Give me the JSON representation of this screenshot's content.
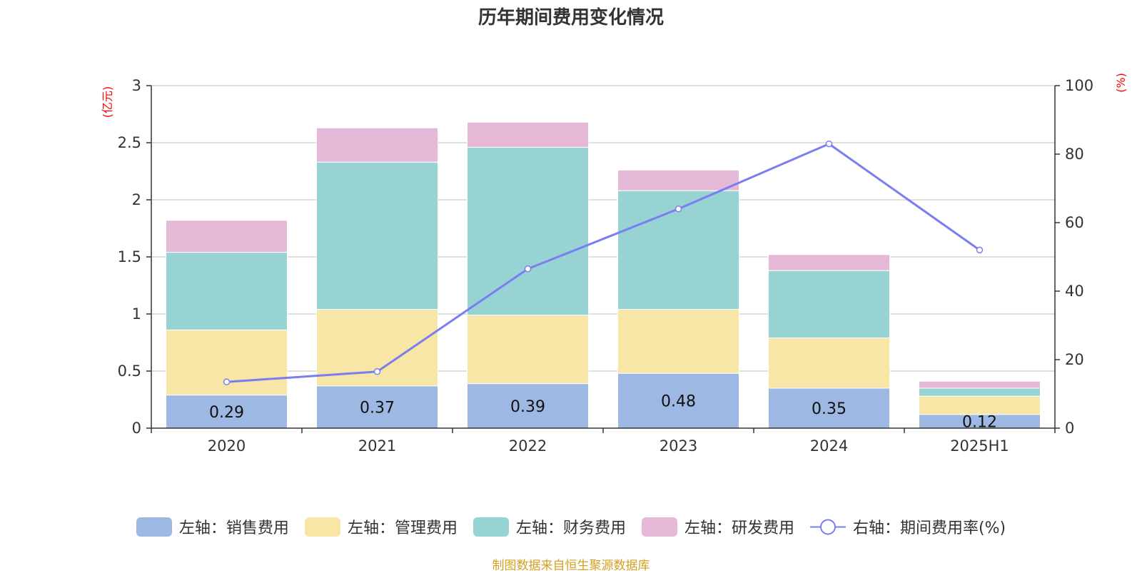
{
  "chart_data": {
    "type": "bar",
    "title": "历年期间费用变化情况",
    "categories": [
      "2020",
      "2021",
      "2022",
      "2023",
      "2024",
      "2025H1"
    ],
    "left_axis": {
      "unit": "(亿元)",
      "ylim": [
        0,
        3
      ],
      "ticks": [
        "0",
        "0.5",
        "1",
        "1.5",
        "2",
        "2.5",
        "3"
      ]
    },
    "right_axis": {
      "unit": "(%)",
      "ylim": [
        0,
        100
      ],
      "ticks": [
        "0",
        "20",
        "40",
        "60",
        "80",
        "100"
      ]
    },
    "stacked": true,
    "grid": true,
    "legend_position": "bottom",
    "series": [
      {
        "name": "左轴：销售费用",
        "axis": "left",
        "color": "#9db8e2",
        "values": [
          0.29,
          0.37,
          0.39,
          0.48,
          0.35,
          0.12
        ],
        "labels": [
          "0.29",
          "0.37",
          "0.39",
          "0.48",
          "0.35",
          "0.12"
        ]
      },
      {
        "name": "左轴：管理费用",
        "axis": "left",
        "color": "#f7e6a5",
        "values": [
          0.57,
          0.67,
          0.6,
          0.56,
          0.44,
          0.16
        ]
      },
      {
        "name": "左轴：财务费用",
        "axis": "left",
        "color": "#97d3d3",
        "values": [
          0.68,
          1.29,
          1.47,
          1.04,
          0.59,
          0.07
        ]
      },
      {
        "name": "左轴：研发费用",
        "axis": "left",
        "color": "#e6b8d8",
        "values": [
          0.28,
          0.3,
          0.22,
          0.18,
          0.14,
          0.06
        ]
      },
      {
        "name": "右轴：期间费用率(%)",
        "axis": "right",
        "type": "line",
        "color": "#7b7ef0",
        "values": [
          13.5,
          16.5,
          46.5,
          64,
          83,
          52
        ]
      }
    ]
  },
  "source": "制图数据来自恒生聚源数据库"
}
